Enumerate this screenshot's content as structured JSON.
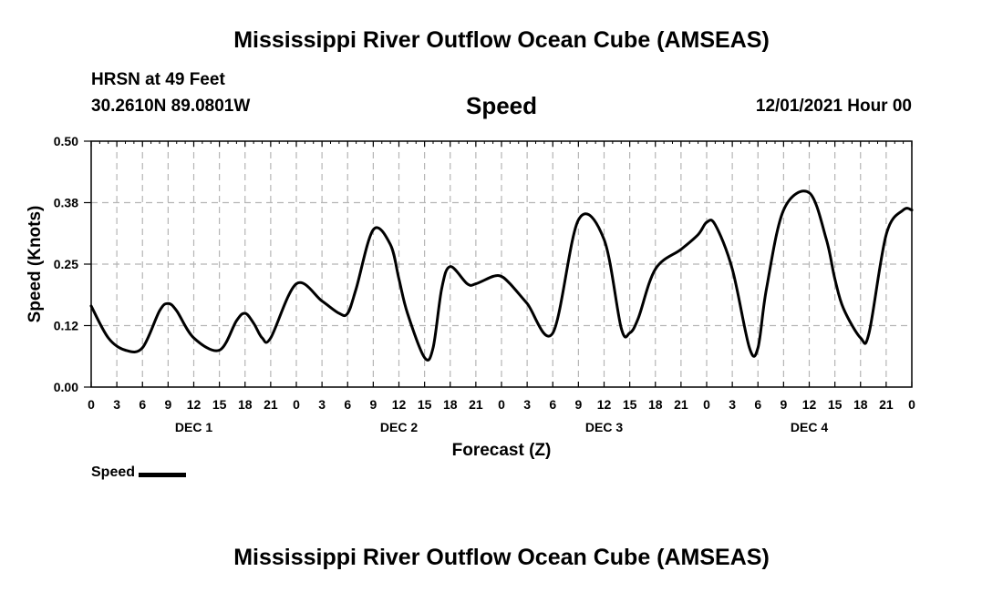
{
  "titles": {
    "top": "Mississippi River Outflow Ocean Cube (AMSEAS)",
    "bottom": "Mississippi River Outflow Ocean Cube (AMSEAS)"
  },
  "header": {
    "station": "HRSN at 49 Feet",
    "coords": "30.2610N  89.0801W",
    "chart_title": "Speed",
    "datetime": "12/01/2021 Hour 00"
  },
  "legend": {
    "label": "Speed"
  },
  "chart_data": {
    "type": "line",
    "title": "Speed",
    "xlabel": "Forecast (Z)",
    "ylabel": "Speed (Knots)",
    "xlim": [
      0,
      96
    ],
    "ylim": [
      0,
      0.5
    ],
    "grid": true,
    "y_ticks": [
      0,
      0.125,
      0.25,
      0.375,
      0.5
    ],
    "y_tick_labels": [
      "0.00",
      "0.12",
      "0.25",
      "0.38",
      "0.50"
    ],
    "x_ticks": [
      0,
      3,
      6,
      9,
      12,
      15,
      18,
      21,
      24,
      27,
      30,
      33,
      36,
      39,
      42,
      45,
      48,
      51,
      54,
      57,
      60,
      63,
      66,
      69,
      72,
      75,
      78,
      81,
      84,
      87,
      90,
      93,
      96
    ],
    "x_tick_labels": [
      "0",
      "3",
      "6",
      "9",
      "12",
      "15",
      "18",
      "21",
      "0",
      "3",
      "6",
      "9",
      "12",
      "15",
      "18",
      "21",
      "0",
      "3",
      "6",
      "9",
      "12",
      "15",
      "18",
      "21",
      "0",
      "3",
      "6",
      "9",
      "12",
      "15",
      "18",
      "21",
      "0"
    ],
    "day_labels": [
      {
        "label": "DEC 1",
        "x": 12
      },
      {
        "label": "DEC 2",
        "x": 36
      },
      {
        "label": "DEC 3",
        "x": 60
      },
      {
        "label": "DEC 4",
        "x": 84
      }
    ],
    "series": [
      {
        "name": "Speed",
        "color": "#000000",
        "x": [
          0,
          2,
          4,
          6,
          8,
          9,
          10,
          12,
          15,
          17,
          18,
          19,
          20,
          21,
          24,
          27,
          29,
          30,
          31,
          33,
          35,
          36,
          37,
          39,
          40,
          41,
          42,
          44,
          45,
          47,
          48,
          49,
          51,
          54,
          57,
          60,
          62,
          63,
          64,
          66,
          69,
          71,
          72,
          73,
          75,
          77,
          78,
          79,
          81,
          84,
          86,
          87,
          88,
          90,
          91,
          93,
          95,
          96
        ],
        "y": [
          0.165,
          0.1,
          0.075,
          0.08,
          0.155,
          0.17,
          0.155,
          0.1,
          0.075,
          0.135,
          0.15,
          0.13,
          0.1,
          0.1,
          0.21,
          0.175,
          0.15,
          0.15,
          0.2,
          0.32,
          0.29,
          0.22,
          0.15,
          0.06,
          0.08,
          0.2,
          0.245,
          0.21,
          0.21,
          0.225,
          0.225,
          0.21,
          0.17,
          0.11,
          0.34,
          0.3,
          0.12,
          0.11,
          0.14,
          0.24,
          0.28,
          0.31,
          0.335,
          0.33,
          0.24,
          0.08,
          0.08,
          0.2,
          0.36,
          0.395,
          0.3,
          0.22,
          0.16,
          0.1,
          0.11,
          0.31,
          0.36,
          0.36
        ]
      }
    ]
  }
}
